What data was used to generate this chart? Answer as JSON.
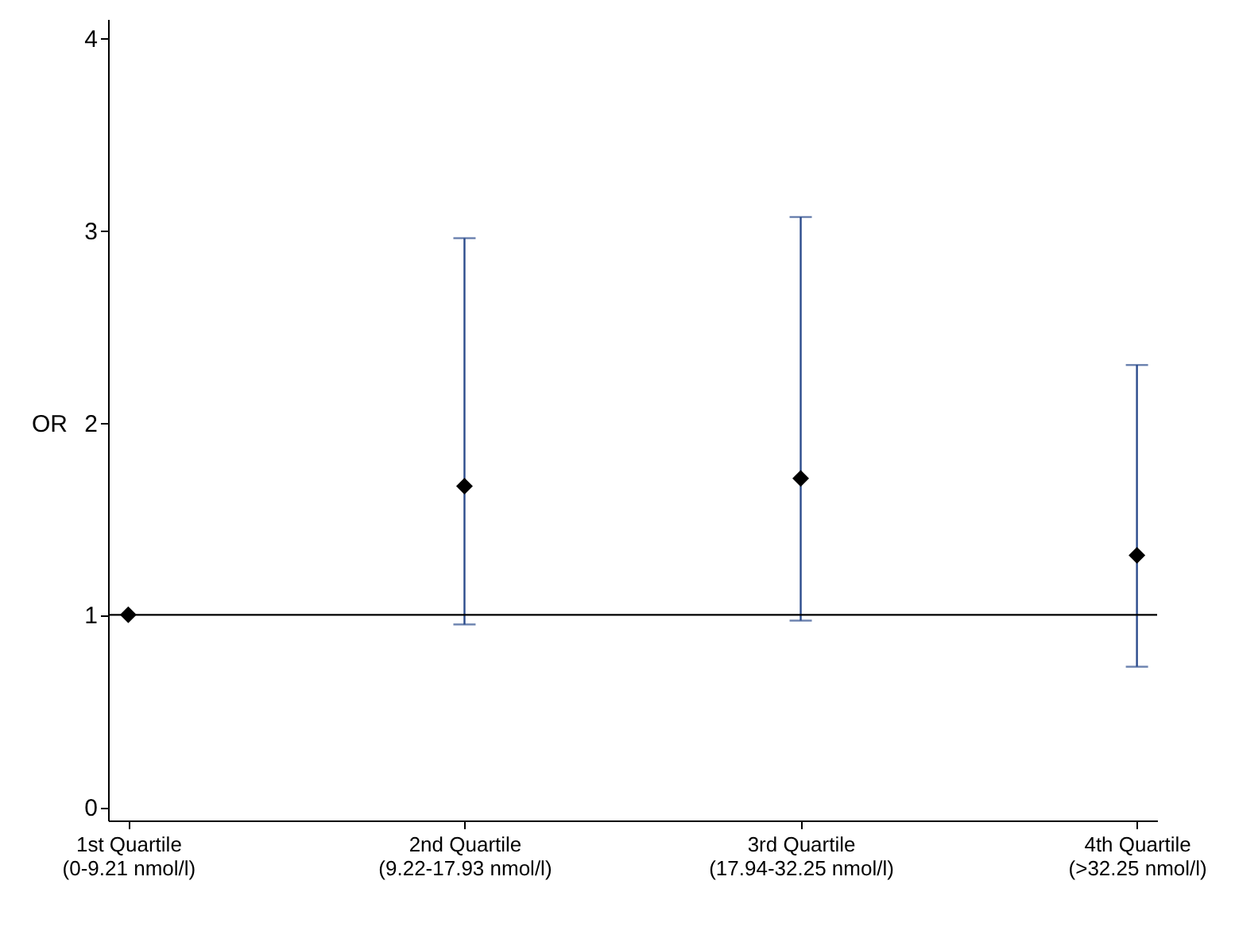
{
  "chart_data": {
    "type": "scatter",
    "ylabel": "OR",
    "categories": [
      "1st Quartile\n(0-9.21 nmol/l)",
      "2nd Quartile\n(9.22-17.93 nmol/l)",
      "3rd Quartile\n(17.94-32.25 nmol/l)",
      "4th Quartile\n(>32.25 nmol/l)"
    ],
    "series": [
      {
        "color": "#2b4b8c",
        "colors": [
          "#000000",
          "#000000",
          "#000000",
          "#000000"
        ],
        "values": [
          1.0,
          1.67,
          1.71,
          1.31
        ],
        "errors": [
          null,
          [
            0.95,
            2.96
          ],
          [
            0.97,
            3.07
          ],
          [
            0.73,
            2.3
          ]
        ]
      }
    ],
    "marker": "diamond",
    "ylim": [
      -0.07,
      4.1
    ],
    "yticks": [
      0,
      1,
      2,
      3,
      4
    ],
    "ref_lines": [
      {
        "axis": "y",
        "value": 1,
        "color": "#000000"
      }
    ]
  }
}
